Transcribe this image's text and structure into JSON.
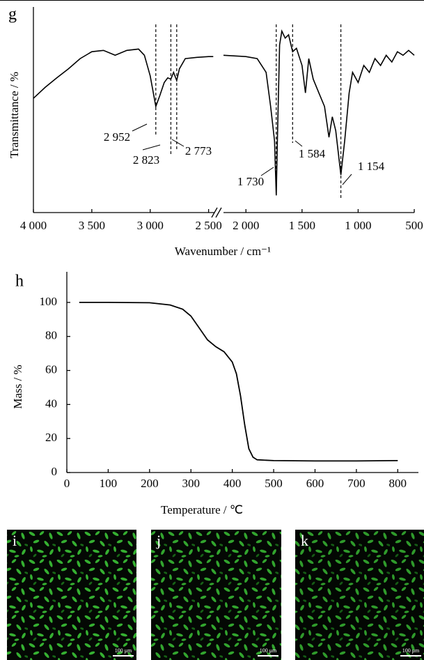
{
  "chart_data": [
    {
      "type": "line",
      "panel": "g",
      "y_label": "Transmittance / %",
      "x_label": "Wavenumber / cm⁻¹",
      "ylim": [
        0,
        100
      ],
      "axis_break": true,
      "x_segments": [
        [
          4000,
          2450
        ],
        [
          2200,
          500
        ]
      ],
      "xticks": [
        {
          "value": 4000,
          "label": "4 000"
        },
        {
          "value": 3500,
          "label": "3 500"
        },
        {
          "value": 3000,
          "label": "3 000"
        },
        {
          "value": 2500,
          "label": "2 500"
        },
        {
          "value": 2000,
          "label": "2 000"
        },
        {
          "value": 1500,
          "label": "1 500"
        },
        {
          "value": 1000,
          "label": "1 000"
        },
        500
      ],
      "color": "#000000",
      "segments": [
        {
          "x": [
            4000,
            3900,
            3800,
            3700,
            3600,
            3500,
            3400,
            3300,
            3200,
            3100,
            3050,
            3000,
            2952,
            2920,
            2880,
            2850,
            2823,
            2800,
            2773,
            2750,
            2700,
            2600,
            2500,
            2460
          ],
          "values": [
            60.7,
            66.5,
            71.6,
            76.4,
            81.8,
            85.5,
            86.2,
            83.6,
            86.2,
            86.9,
            83.6,
            72.7,
            56.4,
            61.8,
            69.1,
            71.6,
            70.9,
            74.5,
            70.2,
            76.4,
            81.8,
            82.5,
            82.9,
            82.9
          ]
        },
        {
          "x": [
            2200,
            2000,
            1900,
            1820,
            1780,
            1745,
            1730,
            1720,
            1700,
            1680,
            1650,
            1620,
            1584,
            1550,
            1500,
            1470,
            1440,
            1400,
            1350,
            1300,
            1260,
            1230,
            1200,
            1154,
            1120,
            1080,
            1050,
            1000,
            950,
            900,
            850,
            800,
            750,
            700,
            650,
            600,
            550,
            500
          ],
          "values": [
            83.6,
            82.9,
            81.8,
            74.5,
            56.4,
            38.2,
            9.1,
            38.2,
            89.1,
            96.4,
            92.7,
            94.5,
            85.5,
            87.3,
            78.2,
            63.6,
            81.8,
            70.9,
            63.6,
            56.4,
            40,
            50.9,
            43.6,
            20,
            38.2,
            63.6,
            74.5,
            69.1,
            78.2,
            74.5,
            81.8,
            78.2,
            83.6,
            80,
            85.5,
            83.6,
            86.2,
            83.6
          ]
        }
      ],
      "annotations": [
        {
          "value": 2952,
          "label": "2 952"
        },
        {
          "value": 2823,
          "label": "2 823"
        },
        {
          "value": 2773,
          "label": "2 773"
        },
        {
          "value": 1730,
          "label": "1 730"
        },
        {
          "value": 1584,
          "label": "1 584"
        },
        {
          "value": 1154,
          "label": "1 154"
        }
      ]
    },
    {
      "type": "line",
      "panel": "h",
      "y_label": "Mass / %",
      "x_label": "Temperature / ℃",
      "xlim": [
        0,
        850
      ],
      "ylim": [
        0,
        118
      ],
      "xticks": [
        0,
        100,
        200,
        300,
        400,
        500,
        600,
        700,
        800
      ],
      "yticks": [
        0,
        20,
        40,
        60,
        80,
        100
      ],
      "color": "#000000",
      "x": [
        30,
        100,
        200,
        250,
        280,
        300,
        320,
        340,
        360,
        380,
        400,
        410,
        420,
        430,
        440,
        450,
        460,
        500,
        600,
        700,
        800
      ],
      "values": [
        100,
        100,
        99.8,
        98.5,
        96,
        92,
        85,
        78,
        74,
        71,
        65,
        58,
        45,
        28,
        14,
        9,
        7.5,
        7,
        6.8,
        6.8,
        7
      ]
    }
  ],
  "micrographs": [
    {
      "panel": "i",
      "scale_bar": "100 μm"
    },
    {
      "panel": "j",
      "scale_bar": "100 μm"
    },
    {
      "panel": "k",
      "scale_bar": "100 μm"
    }
  ]
}
